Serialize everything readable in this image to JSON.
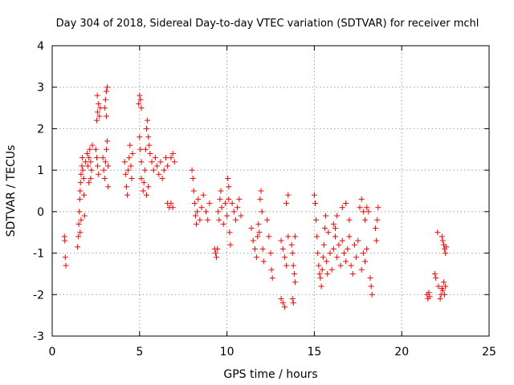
{
  "chart_data": {
    "type": "scatter",
    "title": "Day 304 of 2018, Sidereal Day-to-day VTEC variation (SDTVAR) for receiver mchl",
    "xlabel": "GPS time / hours",
    "ylabel": "SDTVAR / TECUs",
    "xlim": [
      0,
      25
    ],
    "ylim": [
      -3,
      4
    ],
    "xticks": [
      0,
      5,
      10,
      15,
      20,
      25
    ],
    "yticks": [
      -3,
      -2,
      -1,
      0,
      1,
      2,
      3,
      4
    ],
    "grid": true,
    "marker": "+",
    "color": "#ff0000",
    "series": [
      {
        "name": "SDTVAR",
        "points": [
          [
            0.7,
            -0.6
          ],
          [
            0.72,
            -0.7
          ],
          [
            0.75,
            -1.1
          ],
          [
            0.78,
            -1.3
          ],
          [
            1.45,
            -0.85
          ],
          [
            1.5,
            -0.6
          ],
          [
            1.52,
            -0.3
          ],
          [
            1.55,
            0.0
          ],
          [
            1.58,
            0.3
          ],
          [
            1.6,
            0.5
          ],
          [
            1.62,
            0.7
          ],
          [
            1.65,
            0.9
          ],
          [
            1.7,
            1.1
          ],
          [
            1.72,
            1.3
          ],
          [
            1.75,
            1.0
          ],
          [
            1.8,
            0.8
          ],
          [
            1.82,
            0.4
          ],
          [
            1.85,
            -0.1
          ],
          [
            1.6,
            -0.5
          ],
          [
            1.65,
            -0.2
          ],
          [
            1.9,
            1.2
          ],
          [
            2.0,
            1.4
          ],
          [
            2.05,
            1.1
          ],
          [
            2.1,
            1.3
          ],
          [
            2.15,
            1.5
          ],
          [
            2.2,
            1.2
          ],
          [
            2.25,
            1.0
          ],
          [
            2.3,
            1.6
          ],
          [
            2.2,
            0.8
          ],
          [
            2.1,
            0.7
          ],
          [
            2.5,
            1.5
          ],
          [
            2.55,
            1.3
          ],
          [
            2.6,
            1.1
          ],
          [
            2.65,
            0.9
          ],
          [
            2.55,
            2.2
          ],
          [
            2.6,
            2.4
          ],
          [
            2.65,
            2.6
          ],
          [
            2.7,
            2.3
          ],
          [
            2.75,
            2.5
          ],
          [
            2.58,
            2.8
          ],
          [
            2.9,
            1.3
          ],
          [
            2.95,
            1.0
          ],
          [
            3.0,
            0.8
          ],
          [
            3.05,
            1.2
          ],
          [
            3.1,
            1.5
          ],
          [
            3.0,
            2.5
          ],
          [
            3.05,
            2.7
          ],
          [
            3.1,
            2.9
          ],
          [
            3.15,
            3.0
          ],
          [
            3.1,
            2.3
          ],
          [
            3.15,
            1.7
          ],
          [
            3.2,
            1.1
          ],
          [
            3.2,
            0.6
          ],
          [
            4.15,
            1.2
          ],
          [
            4.2,
            0.9
          ],
          [
            4.25,
            0.6
          ],
          [
            4.3,
            0.4
          ],
          [
            4.35,
            1.0
          ],
          [
            4.4,
            1.3
          ],
          [
            4.45,
            1.6
          ],
          [
            4.5,
            1.1
          ],
          [
            4.55,
            0.8
          ],
          [
            4.6,
            1.4
          ],
          [
            4.95,
            2.6
          ],
          [
            5.0,
            2.8
          ],
          [
            5.05,
            2.7
          ],
          [
            5.1,
            2.5
          ],
          [
            5.0,
            1.8
          ],
          [
            5.05,
            1.5
          ],
          [
            5.1,
            1.2
          ],
          [
            5.1,
            0.8
          ],
          [
            5.2,
            0.5
          ],
          [
            5.25,
            0.7
          ],
          [
            5.3,
            1.0
          ],
          [
            5.35,
            1.5
          ],
          [
            5.4,
            2.0
          ],
          [
            5.45,
            2.2
          ],
          [
            5.5,
            1.8
          ],
          [
            5.55,
            1.6
          ],
          [
            5.6,
            1.4
          ],
          [
            5.7,
            1.2
          ],
          [
            5.8,
            1.0
          ],
          [
            5.9,
            1.3
          ],
          [
            6.0,
            1.1
          ],
          [
            6.1,
            0.9
          ],
          [
            6.2,
            1.2
          ],
          [
            6.3,
            0.8
          ],
          [
            6.4,
            1.0
          ],
          [
            6.5,
            1.3
          ],
          [
            6.6,
            1.1
          ],
          [
            5.4,
            0.4
          ],
          [
            5.5,
            0.6
          ],
          [
            6.6,
            0.2
          ],
          [
            6.7,
            0.1
          ],
          [
            6.8,
            0.2
          ],
          [
            6.9,
            0.1
          ],
          [
            7.0,
            1.2
          ],
          [
            6.9,
            1.4
          ],
          [
            6.8,
            1.3
          ],
          [
            8.0,
            1.0
          ],
          [
            8.05,
            0.8
          ],
          [
            8.1,
            0.5
          ],
          [
            8.15,
            0.2
          ],
          [
            8.2,
            -0.1
          ],
          [
            8.25,
            -0.3
          ],
          [
            8.3,
            0.0
          ],
          [
            8.35,
            0.3
          ],
          [
            8.45,
            -0.2
          ],
          [
            8.55,
            0.1
          ],
          [
            8.65,
            0.4
          ],
          [
            8.8,
            0.0
          ],
          [
            8.9,
            -0.2
          ],
          [
            9.0,
            0.2
          ],
          [
            9.3,
            -0.9
          ],
          [
            9.35,
            -1.0
          ],
          [
            9.4,
            -1.1
          ],
          [
            9.45,
            -0.9
          ],
          [
            9.5,
            0.0
          ],
          [
            9.55,
            -0.2
          ],
          [
            9.6,
            0.3
          ],
          [
            9.65,
            0.5
          ],
          [
            9.7,
            0.1
          ],
          [
            9.8,
            -0.3
          ],
          [
            9.9,
            0.2
          ],
          [
            10.0,
            -0.1
          ],
          [
            10.1,
            0.3
          ],
          [
            10.05,
            0.8
          ],
          [
            10.1,
            0.6
          ],
          [
            10.15,
            -0.5
          ],
          [
            10.2,
            -0.8
          ],
          [
            10.3,
            0.2
          ],
          [
            10.4,
            0.0
          ],
          [
            10.5,
            -0.2
          ],
          [
            10.6,
            0.1
          ],
          [
            10.7,
            0.3
          ],
          [
            10.8,
            -0.1
          ],
          [
            11.4,
            -0.4
          ],
          [
            11.5,
            -0.7
          ],
          [
            11.6,
            -0.9
          ],
          [
            11.7,
            -1.1
          ],
          [
            11.75,
            -0.6
          ],
          [
            11.8,
            -0.3
          ],
          [
            11.85,
            -0.5
          ],
          [
            11.9,
            0.3
          ],
          [
            11.95,
            0.5
          ],
          [
            12.0,
            0.0
          ],
          [
            12.05,
            -0.9
          ],
          [
            12.1,
            -1.2
          ],
          [
            12.3,
            -0.2
          ],
          [
            12.4,
            -0.6
          ],
          [
            12.5,
            -1.0
          ],
          [
            12.55,
            -1.4
          ],
          [
            12.6,
            -1.6
          ],
          [
            13.1,
            -0.7
          ],
          [
            13.2,
            -0.9
          ],
          [
            13.3,
            -1.1
          ],
          [
            13.4,
            -1.3
          ],
          [
            13.5,
            -0.6
          ],
          [
            13.2,
            -2.2
          ],
          [
            13.3,
            -2.3
          ],
          [
            13.1,
            -2.1
          ],
          [
            13.4,
            0.2
          ],
          [
            13.5,
            0.4
          ],
          [
            13.7,
            -0.8
          ],
          [
            13.75,
            -1.0
          ],
          [
            13.8,
            -1.3
          ],
          [
            13.85,
            -1.5
          ],
          [
            13.9,
            -1.7
          ],
          [
            13.75,
            -2.1
          ],
          [
            13.8,
            -2.2
          ],
          [
            13.9,
            -0.6
          ],
          [
            15.0,
            0.4
          ],
          [
            15.05,
            0.2
          ],
          [
            15.1,
            -0.2
          ],
          [
            15.15,
            -0.6
          ],
          [
            15.2,
            -1.0
          ],
          [
            15.25,
            -1.3
          ],
          [
            15.3,
            -1.5
          ],
          [
            15.35,
            -1.6
          ],
          [
            15.4,
            -1.8
          ],
          [
            15.45,
            -1.4
          ],
          [
            15.5,
            -1.1
          ],
          [
            15.55,
            -0.8
          ],
          [
            15.6,
            -0.4
          ],
          [
            15.65,
            -0.1
          ],
          [
            15.7,
            -1.2
          ],
          [
            15.75,
            -1.5
          ],
          [
            15.8,
            -0.5
          ],
          [
            15.9,
            -1.0
          ],
          [
            16.0,
            -1.4
          ],
          [
            16.1,
            -0.9
          ],
          [
            16.2,
            -0.6
          ],
          [
            16.3,
            -1.1
          ],
          [
            16.4,
            -0.8
          ],
          [
            16.5,
            -1.3
          ],
          [
            16.6,
            -0.7
          ],
          [
            16.7,
            -1.0
          ],
          [
            16.8,
            -1.2
          ],
          [
            16.9,
            -0.9
          ],
          [
            17.0,
            -0.6
          ],
          [
            17.1,
            -1.3
          ],
          [
            17.2,
            -1.5
          ],
          [
            17.3,
            -0.8
          ],
          [
            17.4,
            -1.1
          ],
          [
            17.5,
            -0.7
          ],
          [
            16.1,
            -0.3
          ],
          [
            16.3,
            -0.1
          ],
          [
            16.6,
            0.1
          ],
          [
            16.8,
            0.2
          ],
          [
            17.0,
            -0.2
          ],
          [
            16.2,
            -0.4
          ],
          [
            17.6,
            0.1
          ],
          [
            17.7,
            0.3
          ],
          [
            17.8,
            0.0
          ],
          [
            17.9,
            -0.2
          ],
          [
            18.0,
            0.1
          ],
          [
            18.1,
            0.0
          ],
          [
            17.8,
            -1.0
          ],
          [
            17.9,
            -1.2
          ],
          [
            18.0,
            -0.9
          ],
          [
            17.7,
            -1.4
          ],
          [
            18.2,
            -1.6
          ],
          [
            18.25,
            -1.8
          ],
          [
            18.3,
            -2.0
          ],
          [
            18.5,
            -0.4
          ],
          [
            18.55,
            -0.7
          ],
          [
            18.6,
            -0.2
          ],
          [
            18.65,
            0.1
          ],
          [
            21.45,
            -2.0
          ],
          [
            21.5,
            -2.1
          ],
          [
            21.55,
            -1.95
          ],
          [
            21.6,
            -2.05
          ],
          [
            21.9,
            -1.5
          ],
          [
            21.95,
            -1.6
          ],
          [
            22.05,
            -0.5
          ],
          [
            22.1,
            -1.8
          ],
          [
            22.2,
            -2.1
          ],
          [
            22.25,
            -2.0
          ],
          [
            22.3,
            -1.85
          ],
          [
            22.35,
            -1.9
          ],
          [
            22.4,
            -1.7
          ],
          [
            22.45,
            -2.0
          ],
          [
            22.5,
            -1.8
          ],
          [
            22.35,
            -0.7
          ],
          [
            22.4,
            -0.8
          ],
          [
            22.45,
            -0.9
          ],
          [
            22.5,
            -1.0
          ],
          [
            22.3,
            -0.6
          ],
          [
            22.55,
            -0.85
          ]
        ]
      }
    ]
  }
}
